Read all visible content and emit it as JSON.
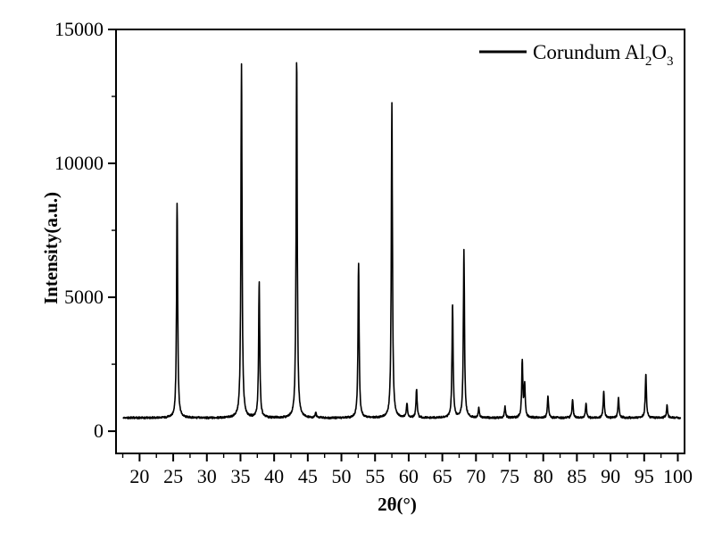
{
  "figure": {
    "background_color": "#ffffff",
    "axis_color": "#000000",
    "trace_color": "#000000"
  },
  "chart_data": {
    "type": "line",
    "title": "",
    "xlabel": "2θ(°)",
    "ylabel": "Intensity(a.u.)",
    "xlim": [
      16.5,
      101
    ],
    "ylim": [
      -830,
      15000
    ],
    "grid": false,
    "legend_position": "top-right",
    "legend_label": "Corundum Al2O3",
    "legend_label_parts": [
      {
        "text": "Corundum Al"
      },
      {
        "text": "2",
        "sub": true
      },
      {
        "text": "O"
      },
      {
        "text": "3",
        "sub": true
      }
    ],
    "x_major_ticks": [
      20,
      25,
      30,
      35,
      40,
      45,
      50,
      55,
      60,
      65,
      70,
      75,
      80,
      85,
      90,
      95,
      100
    ],
    "x_tick_labels": [
      "20",
      "25",
      "30",
      "35",
      "40",
      "45",
      "50",
      "55",
      "60",
      "65",
      "70",
      "75",
      "80",
      "85",
      "90",
      "95",
      "100"
    ],
    "x_minor_ticks": [
      17.5,
      22.5,
      27.5,
      32.5,
      37.5,
      42.5,
      47.5,
      52.5,
      57.5,
      62.5,
      67.5,
      72.5,
      77.5,
      82.5,
      87.5,
      92.5,
      97.5
    ],
    "y_major_ticks": [
      0,
      5000,
      10000,
      15000
    ],
    "y_tick_labels": [
      "0",
      "5000",
      "10000",
      "15000"
    ],
    "y_minor_ticks": [
      2500,
      7500,
      12500
    ],
    "series": [
      {
        "name": "Corundum Al2O3",
        "baseline": 500,
        "noise_amplitude": 45,
        "x_range": [
          17.6,
          100.4
        ],
        "peak_fwhm_deg": 0.2,
        "peaks": [
          {
            "two_theta": 25.58,
            "intensity": 8500
          },
          {
            "two_theta": 35.15,
            "intensity": 13700
          },
          {
            "two_theta": 37.78,
            "intensity": 5570
          },
          {
            "two_theta": 43.35,
            "intensity": 13900
          },
          {
            "two_theta": 46.18,
            "intensity": 700
          },
          {
            "two_theta": 52.55,
            "intensity": 6280
          },
          {
            "two_theta": 57.5,
            "intensity": 12250
          },
          {
            "two_theta": 59.74,
            "intensity": 1030
          },
          {
            "two_theta": 61.17,
            "intensity": 1580
          },
          {
            "two_theta": 66.52,
            "intensity": 4740
          },
          {
            "two_theta": 68.21,
            "intensity": 6780
          },
          {
            "two_theta": 70.42,
            "intensity": 870
          },
          {
            "two_theta": 74.31,
            "intensity": 930
          },
          {
            "two_theta": 76.88,
            "intensity": 2600
          },
          {
            "two_theta": 77.24,
            "intensity": 1700
          },
          {
            "two_theta": 80.7,
            "intensity": 1320
          },
          {
            "two_theta": 84.36,
            "intensity": 1200
          },
          {
            "two_theta": 86.36,
            "intensity": 1030
          },
          {
            "two_theta": 88.99,
            "intensity": 1500
          },
          {
            "two_theta": 91.18,
            "intensity": 1250
          },
          {
            "two_theta": 95.25,
            "intensity": 2160
          },
          {
            "two_theta": 98.4,
            "intensity": 960
          }
        ]
      }
    ]
  }
}
